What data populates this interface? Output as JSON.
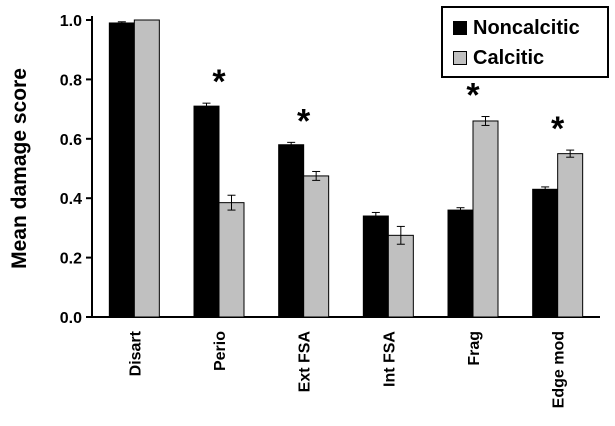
{
  "chart_data": {
    "type": "bar",
    "ylabel": "Mean damage score",
    "xlabel": "",
    "ylim": [
      0,
      1.0
    ],
    "yticks": [
      "0.0",
      "0.2",
      "0.4",
      "0.6",
      "0.8",
      "1.0"
    ],
    "ytick_values": [
      0,
      0.2,
      0.4,
      0.6,
      0.8,
      1.0
    ],
    "categories": [
      "Disart",
      "Perio",
      "Ext FSA",
      "Int FSA",
      "Frag",
      "Edge mod"
    ],
    "series": [
      {
        "name": "Noncalcitic",
        "color": "#000000",
        "values": [
          0.99,
          0.71,
          0.58,
          0.34,
          0.36,
          0.43
        ],
        "errors": [
          0.004,
          0.01,
          0.008,
          0.012,
          0.008,
          0.008
        ]
      },
      {
        "name": "Calcitic",
        "color": "#c0c0c0",
        "values": [
          1.0,
          0.385,
          0.475,
          0.275,
          0.66,
          0.55
        ],
        "errors": [
          0.0,
          0.025,
          0.015,
          0.03,
          0.015,
          0.012
        ]
      }
    ],
    "significance": [
      "",
      "*",
      "*",
      "",
      "*",
      "*"
    ],
    "legend_position": "top-right",
    "grid": false
  }
}
